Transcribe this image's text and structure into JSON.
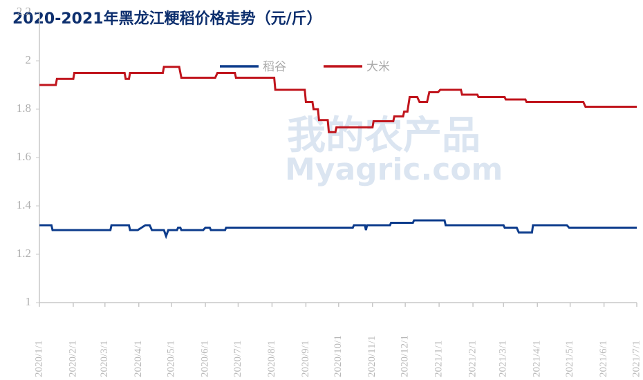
{
  "chart_data": {
    "type": "line",
    "title": "2020-2021年黑龙江粳稻价格走势（元/斤）",
    "watermark": [
      "我的农产品",
      "Myagric.com"
    ],
    "ylim": [
      1,
      2.2
    ],
    "yticks": [
      1,
      1.2,
      1.4,
      1.6,
      1.8,
      2,
      2.2
    ],
    "xlim": [
      "2020/1/1",
      "2021/7/1"
    ],
    "xticks": [
      "2020/1/1",
      "2020/2/1",
      "2020/3/1",
      "2020/4/1",
      "2020/5/1",
      "2020/6/1",
      "2020/7/1",
      "2020/8/1",
      "2020/9/1",
      "2020/10/1",
      "2020/11/1",
      "2020/12/1",
      "2021/1/1",
      "2021/2/1",
      "2021/3/1",
      "2021/4/1",
      "2021/5/1",
      "2021/6/1",
      "2021/7/1"
    ],
    "legend": "top",
    "series": [
      {
        "name": "稻谷",
        "color": "#0d3c8c",
        "x": [
          "2020/1/1",
          "2020/1/12",
          "2020/1/13",
          "2020/3/6",
          "2020/3/7",
          "2020/3/23",
          "2020/3/24",
          "2020/3/31",
          "2020/4/7",
          "2020/4/11",
          "2020/4/13",
          "2020/4/24",
          "2020/4/26",
          "2020/4/28",
          "2020/5/6",
          "2020/5/7",
          "2020/5/9",
          "2020/5/10",
          "2020/5/30",
          "2020/6/1",
          "2020/6/5",
          "2020/6/6",
          "2020/6/19",
          "2020/6/20",
          "2020/10/14",
          "2020/10/15",
          "2020/10/25",
          "2020/10/26",
          "2020/10/27",
          "2020/11/17",
          "2020/11/18",
          "2020/12/8",
          "2020/12/9",
          "2021/1/6",
          "2021/1/7",
          "2021/3/1",
          "2021/3/2",
          "2021/3/13",
          "2021/3/15",
          "2021/3/27",
          "2021/3/28",
          "2021/4/28",
          "2021/4/30",
          "2021/7/1"
        ],
        "values": [
          1.32,
          1.32,
          1.3,
          1.3,
          1.32,
          1.32,
          1.3,
          1.3,
          1.32,
          1.32,
          1.3,
          1.3,
          1.275,
          1.3,
          1.3,
          1.31,
          1.31,
          1.3,
          1.3,
          1.31,
          1.31,
          1.3,
          1.3,
          1.31,
          1.31,
          1.32,
          1.32,
          1.3,
          1.32,
          1.32,
          1.33,
          1.33,
          1.34,
          1.34,
          1.32,
          1.32,
          1.31,
          1.31,
          1.29,
          1.29,
          1.32,
          1.32,
          1.31,
          1.31
        ]
      },
      {
        "name": "大米",
        "color": "#c0141c",
        "x": [
          "2020/1/1",
          "2020/1/16",
          "2020/1/17",
          "2020/2/1",
          "2020/2/2",
          "2020/3/19",
          "2020/3/20",
          "2020/3/23",
          "2020/3/24",
          "2020/4/23",
          "2020/4/24",
          "2020/5/8",
          "2020/5/10",
          "2020/6/10",
          "2020/6/12",
          "2020/6/28",
          "2020/6/29",
          "2020/8/3",
          "2020/8/4",
          "2020/8/31",
          "2020/9/1",
          "2020/9/7",
          "2020/9/8",
          "2020/9/12",
          "2020/9/13",
          "2020/9/21",
          "2020/9/22",
          "2020/9/28",
          "2020/9/29",
          "2020/11/1",
          "2020/11/2",
          "2020/11/20",
          "2020/11/21",
          "2020/11/29",
          "2020/11/30",
          "2020/12/3",
          "2020/12/5",
          "2020/12/12",
          "2020/12/14",
          "2020/12/21",
          "2020/12/23",
          "2020/12/31",
          "2021/1/2",
          "2021/1/21",
          "2021/1/22",
          "2021/2/5",
          "2021/2/6",
          "2021/3/2",
          "2021/3/3",
          "2021/3/21",
          "2021/3/22",
          "2021/5/13",
          "2021/5/15",
          "2021/7/1"
        ],
        "values": [
          1.9,
          1.9,
          1.925,
          1.925,
          1.95,
          1.95,
          1.925,
          1.925,
          1.95,
          1.95,
          1.975,
          1.975,
          1.93,
          1.93,
          1.95,
          1.95,
          1.93,
          1.93,
          1.88,
          1.88,
          1.83,
          1.83,
          1.8,
          1.8,
          1.755,
          1.755,
          1.705,
          1.705,
          1.725,
          1.725,
          1.75,
          1.75,
          1.77,
          1.77,
          1.79,
          1.79,
          1.85,
          1.85,
          1.83,
          1.83,
          1.87,
          1.87,
          1.88,
          1.88,
          1.86,
          1.86,
          1.85,
          1.85,
          1.84,
          1.84,
          1.83,
          1.83,
          1.81,
          1.81
        ]
      }
    ]
  }
}
